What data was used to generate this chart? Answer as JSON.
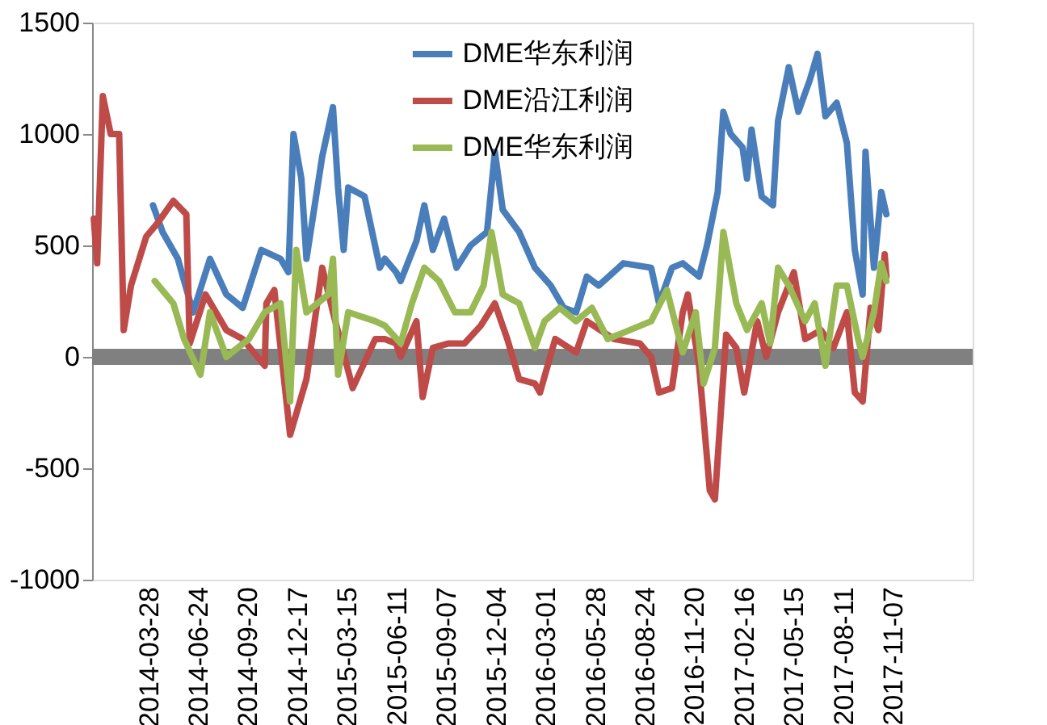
{
  "chart_data": {
    "type": "line",
    "legend": "top",
    "marker": "none",
    "line_style": "solid",
    "xlim": [
      "2013-12-17",
      "2018-03-27"
    ],
    "xticks": [
      "2014-03-28",
      "2014-06-24",
      "2014-09-20",
      "2014-12-17",
      "2015-03-15",
      "2015-06-11",
      "2015-09-07",
      "2015-12-04",
      "2016-03-01",
      "2016-05-28",
      "2016-08-24",
      "2016-11-20",
      "2017-02-16",
      "2017-05-15",
      "2017-08-11",
      "2017-11-07"
    ],
    "ylim": [
      -1000,
      1500
    ],
    "yticks": [
      -1000,
      -500,
      0,
      500,
      1000,
      1500
    ],
    "ref_lines": [
      {
        "axis": "y",
        "value": 0,
        "color": "#808080"
      }
    ],
    "series": [
      {
        "name": "DME华东利润",
        "color": "#4a7ebb",
        "x": [
          "2014-04-04",
          "2014-04-21",
          "2014-05-18",
          "2014-06-14",
          "2014-07-14",
          "2014-08-12",
          "2014-09-10",
          "2014-10-13",
          "2014-11-16",
          "2014-11-30",
          "2014-12-09",
          "2014-12-23",
          "2015-01-01",
          "2015-01-29",
          "2015-02-17",
          "2015-02-26",
          "2015-03-08",
          "2015-03-16",
          "2015-04-14",
          "2015-05-11",
          "2015-05-20",
          "2015-06-09",
          "2015-06-17",
          "2015-07-15",
          "2015-07-29",
          "2015-08-13",
          "2015-09-02",
          "2015-09-24",
          "2015-10-19",
          "2015-11-17",
          "2015-12-01",
          "2015-12-15",
          "2016-01-13",
          "2016-02-10",
          "2016-03-09",
          "2016-04-01",
          "2016-04-23",
          "2016-05-12",
          "2016-06-02",
          "2016-07-16",
          "2016-09-03",
          "2016-09-17",
          "2016-10-10",
          "2016-10-29",
          "2016-11-27",
          "2016-12-11",
          "2016-12-30",
          "2017-01-09",
          "2017-01-22",
          "2017-02-12",
          "2017-02-20",
          "2017-02-28",
          "2017-03-18",
          "2017-04-07",
          "2017-04-16",
          "2017-05-05",
          "2017-05-22",
          "2017-06-11",
          "2017-06-25",
          "2017-07-09",
          "2017-07-29",
          "2017-08-16",
          "2017-08-30",
          "2017-09-13",
          "2017-09-18",
          "2017-10-03",
          "2017-10-16",
          "2017-10-25"
        ],
        "values": [
          680,
          560,
          440,
          200,
          440,
          280,
          220,
          480,
          440,
          380,
          1000,
          800,
          440,
          900,
          1120,
          760,
          480,
          760,
          720,
          400,
          440,
          380,
          340,
          520,
          680,
          480,
          620,
          400,
          500,
          560,
          920,
          660,
          560,
          400,
          320,
          220,
          200,
          360,
          320,
          420,
          400,
          240,
          400,
          420,
          360,
          500,
          740,
          1100,
          1000,
          940,
          800,
          1020,
          720,
          680,
          1060,
          1300,
          1100,
          1240,
          1360,
          1080,
          1140,
          960,
          480,
          280,
          920,
          400,
          740,
          640
        ]
      },
      {
        "name": "DME沿江利润",
        "color": "#be4b48",
        "x": [
          "2013-12-20",
          "2013-12-26",
          "2014-01-05",
          "2014-01-19",
          "2014-02-03",
          "2014-02-11",
          "2014-02-24",
          "2014-03-23",
          "2014-04-12",
          "2014-05-10",
          "2014-06-02",
          "2014-06-08",
          "2014-07-06",
          "2014-08-12",
          "2014-09-10",
          "2014-10-19",
          "2014-10-22",
          "2014-11-05",
          "2014-12-03",
          "2015-01-01",
          "2015-01-29",
          "2015-02-17",
          "2015-03-24",
          "2015-05-03",
          "2015-05-20",
          "2015-06-09",
          "2015-06-17",
          "2015-07-15",
          "2015-07-26",
          "2015-08-13",
          "2015-09-10",
          "2015-10-08",
          "2015-11-06",
          "2015-12-01",
          "2015-12-23",
          "2016-01-13",
          "2016-02-10",
          "2016-02-19",
          "2016-03-17",
          "2016-04-23",
          "2016-05-12",
          "2016-06-29",
          "2016-08-14",
          "2016-09-03",
          "2016-09-17",
          "2016-10-10",
          "2016-10-29",
          "2016-11-07",
          "2016-11-27",
          "2016-12-16",
          "2016-12-25",
          "2017-01-14",
          "2017-02-01",
          "2017-02-15",
          "2017-03-10",
          "2017-03-26",
          "2017-04-16",
          "2017-05-14",
          "2017-06-03",
          "2017-07-01",
          "2017-07-23",
          "2017-08-16",
          "2017-08-30",
          "2017-09-13",
          "2017-09-27",
          "2017-10-11",
          "2017-10-22",
          "2017-10-25"
        ],
        "values": [
          620,
          420,
          1170,
          1000,
          1000,
          120,
          320,
          540,
          600,
          700,
          640,
          60,
          280,
          120,
          80,
          -40,
          240,
          300,
          -350,
          -100,
          400,
          200,
          -140,
          80,
          80,
          60,
          0,
          160,
          -180,
          40,
          60,
          60,
          140,
          240,
          80,
          -100,
          -120,
          -160,
          80,
          20,
          160,
          80,
          60,
          0,
          -160,
          -140,
          200,
          280,
          -40,
          -600,
          -640,
          100,
          40,
          -160,
          160,
          0,
          200,
          380,
          80,
          120,
          40,
          200,
          -160,
          -200,
          220,
          120,
          460,
          360
        ]
      },
      {
        "name": "DME华东利润",
        "color": "#98b954",
        "x": [
          "2014-04-07",
          "2014-05-10",
          "2014-05-29",
          "2014-06-27",
          "2014-07-14",
          "2014-08-12",
          "2014-09-21",
          "2014-10-19",
          "2014-11-16",
          "2014-12-03",
          "2014-12-14",
          "2015-01-01",
          "2015-02-09",
          "2015-02-17",
          "2015-02-26",
          "2015-03-16",
          "2015-05-03",
          "2015-05-20",
          "2015-06-17",
          "2015-07-07",
          "2015-07-29",
          "2015-08-24",
          "2015-09-21",
          "2015-10-19",
          "2015-11-11",
          "2015-11-25",
          "2015-12-15",
          "2016-01-13",
          "2016-02-10",
          "2016-02-27",
          "2016-03-25",
          "2016-04-23",
          "2016-05-21",
          "2016-06-18",
          "2016-07-27",
          "2016-09-03",
          "2016-10-01",
          "2016-10-29",
          "2016-11-21",
          "2016-12-05",
          "2016-12-25",
          "2017-01-09",
          "2017-02-01",
          "2017-02-20",
          "2017-03-18",
          "2017-04-02",
          "2017-04-16",
          "2017-05-05",
          "2017-06-03",
          "2017-06-20",
          "2017-07-09",
          "2017-07-29",
          "2017-08-16",
          "2017-09-05",
          "2017-09-13",
          "2017-10-03",
          "2017-10-16",
          "2017-10-25"
        ],
        "values": [
          340,
          240,
          80,
          -80,
          200,
          0,
          80,
          200,
          240,
          -200,
          480,
          200,
          280,
          440,
          -80,
          200,
          160,
          140,
          60,
          240,
          400,
          340,
          200,
          200,
          320,
          560,
          280,
          240,
          40,
          160,
          220,
          160,
          220,
          80,
          120,
          160,
          300,
          20,
          200,
          -120,
          40,
          560,
          240,
          120,
          240,
          60,
          400,
          320,
          160,
          240,
          -40,
          320,
          320,
          80,
          0,
          200,
          420,
          340
        ]
      }
    ]
  }
}
